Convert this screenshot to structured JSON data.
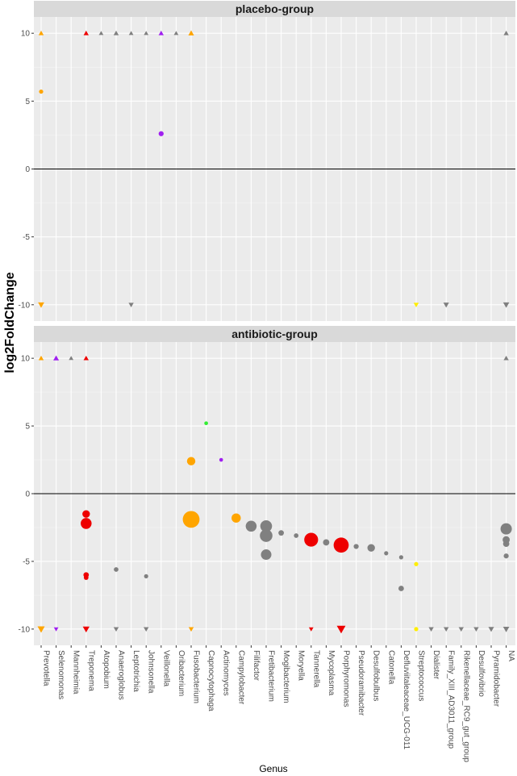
{
  "chart_data": {
    "type": "scatter",
    "xlabel": "Genus",
    "ylabel": "log2FoldChange",
    "ylim": [
      -11.2,
      11.2
    ],
    "yticks": [
      10,
      5,
      0,
      -5,
      -10
    ],
    "ytick_labels": [
      "10",
      "5",
      "0",
      "-5",
      "-10"
    ],
    "grid": true,
    "categories": [
      "Prevotella",
      "Selenomonas",
      "Mannheimia",
      "Treponema",
      "Atopobium",
      "Anaeroglobus",
      "Leptotrichia",
      "Johnsonella",
      "Veillonella",
      "Oribacterium",
      "Fusobacterium",
      "Capnocytophaga",
      "Actinomyces",
      "Campylobacter",
      "Filifactor",
      "Fretibacterium",
      "Mogibacterium",
      "Moryella",
      "Tannerella",
      "Mycoplasma",
      "Porphyromonas",
      "Pseudoramibacter",
      "Desulfobulbus",
      "Catonella",
      "Defluviitaleaceae_UCG-011",
      "Streptococcus",
      "Dialister",
      "Family_XIII_AD3011_group",
      "Rikenellaceae_RC9_gut_group",
      "Desulfovibrio",
      "Pyramidobacter",
      "NA"
    ],
    "colors": {
      "orange": "#FFA500",
      "red": "#EE0000",
      "grey": "#808080",
      "purple": "#A020F0",
      "green": "#33EE33",
      "yellow": "#FFEE00"
    },
    "panels": [
      {
        "title": "placebo-group",
        "points": [
          {
            "x": "Prevotella",
            "y": 10,
            "shape": "triangle-up",
            "color": "orange",
            "size": 1
          },
          {
            "x": "Prevotella",
            "y": 5.7,
            "shape": "circle",
            "color": "orange",
            "size": 1
          },
          {
            "x": "Prevotella",
            "y": -10,
            "shape": "triangle-down",
            "color": "orange",
            "size": 1.2
          },
          {
            "x": "Treponema",
            "y": 10,
            "shape": "triangle-up",
            "color": "red",
            "size": 1
          },
          {
            "x": "Atopobium",
            "y": 10,
            "shape": "triangle-up",
            "color": "grey",
            "size": 0.9
          },
          {
            "x": "Anaeroglobus",
            "y": 10,
            "shape": "triangle-up",
            "color": "grey",
            "size": 1
          },
          {
            "x": "Leptotrichia",
            "y": 10,
            "shape": "triangle-up",
            "color": "grey",
            "size": 0.9
          },
          {
            "x": "Leptotrichia",
            "y": -10,
            "shape": "triangle-down",
            "color": "grey",
            "size": 1
          },
          {
            "x": "Johnsonella",
            "y": 10,
            "shape": "triangle-up",
            "color": "grey",
            "size": 0.9
          },
          {
            "x": "Veillonella",
            "y": 10,
            "shape": "triangle-up",
            "color": "purple",
            "size": 1
          },
          {
            "x": "Veillonella",
            "y": 2.6,
            "shape": "circle",
            "color": "purple",
            "size": 1.2
          },
          {
            "x": "Oribacterium",
            "y": 10,
            "shape": "triangle-up",
            "color": "grey",
            "size": 0.9
          },
          {
            "x": "Fusobacterium",
            "y": 10,
            "shape": "triangle-up",
            "color": "orange",
            "size": 1.1
          },
          {
            "x": "Streptococcus",
            "y": -10,
            "shape": "triangle-down",
            "color": "yellow",
            "size": 1
          },
          {
            "x": "Family_XIII_AD3011_group",
            "y": -10,
            "shape": "triangle-down",
            "color": "grey",
            "size": 1.1
          },
          {
            "x": "NA",
            "y": 10,
            "shape": "triangle-up",
            "color": "grey",
            "size": 1
          },
          {
            "x": "NA",
            "y": -10,
            "shape": "triangle-down",
            "color": "grey",
            "size": 1.2
          }
        ]
      },
      {
        "title": "antibiotic-group",
        "points": [
          {
            "x": "Prevotella",
            "y": 10,
            "shape": "triangle-up",
            "color": "orange",
            "size": 1
          },
          {
            "x": "Prevotella",
            "y": -10,
            "shape": "triangle-down",
            "color": "orange",
            "size": 1.4
          },
          {
            "x": "Selenomonas",
            "y": 10,
            "shape": "triangle-up",
            "color": "purple",
            "size": 1.1
          },
          {
            "x": "Selenomonas",
            "y": -10,
            "shape": "triangle-down",
            "color": "purple",
            "size": 0.9
          },
          {
            "x": "Mannheimia",
            "y": 10,
            "shape": "triangle-up",
            "color": "grey",
            "size": 0.9
          },
          {
            "x": "Treponema",
            "y": 10,
            "shape": "triangle-up",
            "color": "red",
            "size": 1
          },
          {
            "x": "Treponema",
            "y": -1.5,
            "shape": "circle",
            "color": "red",
            "size": 1.8
          },
          {
            "x": "Treponema",
            "y": -2.2,
            "shape": "circle",
            "color": "red",
            "size": 2.6
          },
          {
            "x": "Treponema",
            "y": -6.0,
            "shape": "circle",
            "color": "red",
            "size": 1.3
          },
          {
            "x": "Treponema",
            "y": -6.2,
            "shape": "circle",
            "color": "red",
            "size": 1.1
          },
          {
            "x": "Treponema",
            "y": -10,
            "shape": "triangle-down",
            "color": "red",
            "size": 1.3
          },
          {
            "x": "Anaeroglobus",
            "y": -5.6,
            "shape": "circle",
            "color": "grey",
            "size": 1.1
          },
          {
            "x": "Anaeroglobus",
            "y": -10,
            "shape": "triangle-down",
            "color": "grey",
            "size": 1
          },
          {
            "x": "Johnsonella",
            "y": -6.1,
            "shape": "circle",
            "color": "grey",
            "size": 1
          },
          {
            "x": "Johnsonella",
            "y": -10,
            "shape": "triangle-down",
            "color": "grey",
            "size": 1
          },
          {
            "x": "Fusobacterium",
            "y": 2.4,
            "shape": "circle",
            "color": "orange",
            "size": 2.0
          },
          {
            "x": "Fusobacterium",
            "y": -1.9,
            "shape": "circle",
            "color": "orange",
            "size": 4.0
          },
          {
            "x": "Fusobacterium",
            "y": -10,
            "shape": "triangle-down",
            "color": "orange",
            "size": 1
          },
          {
            "x": "Capnocytophaga",
            "y": 5.2,
            "shape": "circle",
            "color": "green",
            "size": 0.9
          },
          {
            "x": "Actinomyces",
            "y": 2.5,
            "shape": "circle",
            "color": "purple",
            "size": 0.9
          },
          {
            "x": "Campylobacter",
            "y": -1.8,
            "shape": "circle",
            "color": "orange",
            "size": 2.2
          },
          {
            "x": "Filifactor",
            "y": -2.4,
            "shape": "circle",
            "color": "grey",
            "size": 2.6
          },
          {
            "x": "Fretibacterium",
            "y": -2.4,
            "shape": "circle",
            "color": "grey",
            "size": 2.8
          },
          {
            "x": "Fretibacterium",
            "y": -3.1,
            "shape": "circle",
            "color": "grey",
            "size": 3.0
          },
          {
            "x": "Fretibacterium",
            "y": -4.5,
            "shape": "circle",
            "color": "grey",
            "size": 2.5
          },
          {
            "x": "Mogibacterium",
            "y": -2.9,
            "shape": "circle",
            "color": "grey",
            "size": 1.3
          },
          {
            "x": "Moryella",
            "y": -3.1,
            "shape": "circle",
            "color": "grey",
            "size": 1.1
          },
          {
            "x": "Tannerella",
            "y": -3.4,
            "shape": "circle",
            "color": "red",
            "size": 3.3
          },
          {
            "x": "Tannerella",
            "y": -10,
            "shape": "triangle-down",
            "color": "red",
            "size": 0.9
          },
          {
            "x": "Mycoplasma",
            "y": -3.6,
            "shape": "circle",
            "color": "grey",
            "size": 1.5
          },
          {
            "x": "Porphyromonas",
            "y": -3.8,
            "shape": "circle",
            "color": "red",
            "size": 3.6
          },
          {
            "x": "Porphyromonas",
            "y": -10,
            "shape": "triangle-down",
            "color": "red",
            "size": 1.7
          },
          {
            "x": "Pseudoramibacter",
            "y": -3.9,
            "shape": "circle",
            "color": "grey",
            "size": 1.2
          },
          {
            "x": "Desulfobulbus",
            "y": -4.0,
            "shape": "circle",
            "color": "grey",
            "size": 1.8
          },
          {
            "x": "Catonella",
            "y": -4.4,
            "shape": "circle",
            "color": "grey",
            "size": 1
          },
          {
            "x": "Defluviitaleaceae_UCG-011",
            "y": -4.7,
            "shape": "circle",
            "color": "grey",
            "size": 1
          },
          {
            "x": "Defluviitaleaceae_UCG-011",
            "y": -7.0,
            "shape": "circle",
            "color": "grey",
            "size": 1.3
          },
          {
            "x": "Streptococcus",
            "y": -5.2,
            "shape": "circle",
            "color": "yellow",
            "size": 1
          },
          {
            "x": "Streptococcus",
            "y": -10,
            "shape": "circle",
            "color": "yellow",
            "size": 1
          },
          {
            "x": "Dialister",
            "y": -10,
            "shape": "triangle-down",
            "color": "grey",
            "size": 1
          },
          {
            "x": "Family_XIII_AD3011_group",
            "y": -10,
            "shape": "triangle-down",
            "color": "grey",
            "size": 1
          },
          {
            "x": "Rikenellaceae_RC9_gut_group",
            "y": -10,
            "shape": "triangle-down",
            "color": "grey",
            "size": 1
          },
          {
            "x": "Desulfovibrio",
            "y": -10,
            "shape": "triangle-down",
            "color": "grey",
            "size": 1
          },
          {
            "x": "Pyramidobacter",
            "y": -10,
            "shape": "triangle-down",
            "color": "grey",
            "size": 1.1
          },
          {
            "x": "NA",
            "y": 10,
            "shape": "triangle-up",
            "color": "grey",
            "size": 1
          },
          {
            "x": "NA",
            "y": -2.6,
            "shape": "circle",
            "color": "grey",
            "size": 2.7
          },
          {
            "x": "NA",
            "y": -3.4,
            "shape": "circle",
            "color": "grey",
            "size": 1.7
          },
          {
            "x": "NA",
            "y": -3.7,
            "shape": "circle",
            "color": "grey",
            "size": 1.5
          },
          {
            "x": "NA",
            "y": -4.6,
            "shape": "circle",
            "color": "grey",
            "size": 1.2
          },
          {
            "x": "NA",
            "y": -10,
            "shape": "triangle-down",
            "color": "grey",
            "size": 1.2
          }
        ]
      }
    ]
  }
}
